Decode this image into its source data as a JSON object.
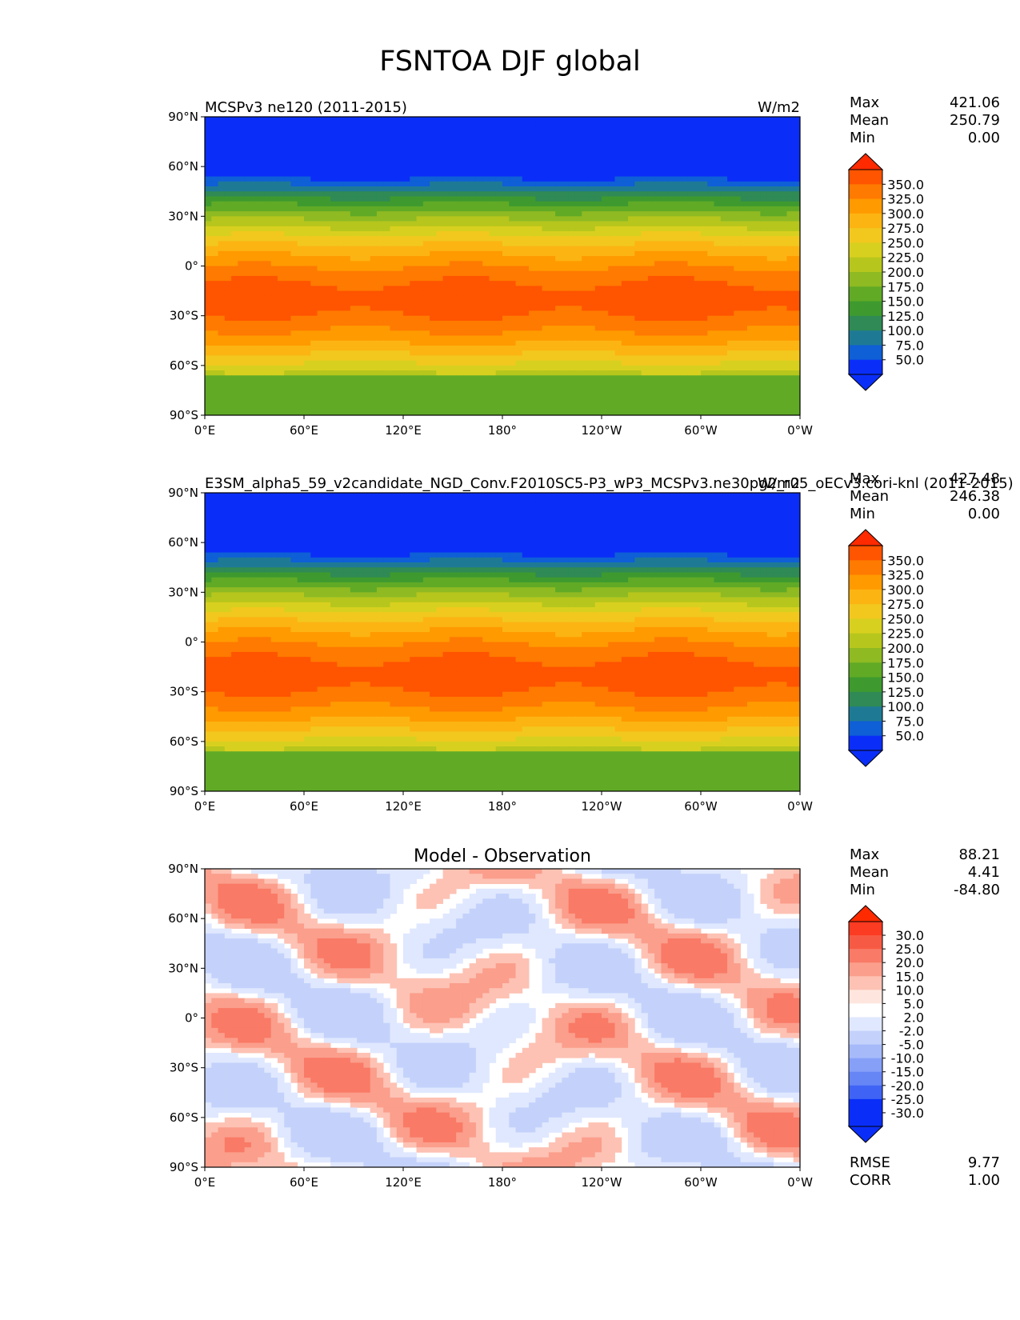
{
  "figure": {
    "title": "FSNTOA DJF global"
  },
  "panels": [
    {
      "name": "test",
      "title_left": "MCSPv3 ne120 (2011-2015)",
      "title_right": "W/m2",
      "title_center": "",
      "stats": [
        {
          "label": "Max",
          "value": "421.06"
        },
        {
          "label": "Mean",
          "value": "250.79"
        },
        {
          "label": "Min",
          "value": "0.00"
        }
      ],
      "colorbar": {
        "labels": [
          "350.0",
          "325.0",
          "300.0",
          "275.0",
          "250.0",
          "225.0",
          "200.0",
          "175.0",
          "150.0",
          "125.0",
          "100.0",
          "75.0",
          "50.0"
        ],
        "colors": [
          "#ff2a00",
          "#ff5400",
          "#ff7a00",
          "#ff9a00",
          "#fcb413",
          "#f2c81e",
          "#d8d01f",
          "#b6c61c",
          "#8fba22",
          "#60aa26",
          "#3e9a2e",
          "#2f8a55",
          "#1e7a94",
          "#0f5fd6",
          "#0a2ef8",
          "#0a2ef8"
        ]
      }
    },
    {
      "name": "reference",
      "title_left": "E3SM_alpha5_59_v2candidate_NGD_Conv.F2010SC5-P3_wP3_MCSPv3.ne30pg2_r05_oECv3.cori-knl (2011-2015)",
      "title_right": "W/m2",
      "title_center": "",
      "stats": [
        {
          "label": "Max",
          "value": "427.48"
        },
        {
          "label": "Mean",
          "value": "246.38"
        },
        {
          "label": "Min",
          "value": "0.00"
        }
      ],
      "colorbar": {
        "labels": [
          "350.0",
          "325.0",
          "300.0",
          "275.0",
          "250.0",
          "225.0",
          "200.0",
          "175.0",
          "150.0",
          "125.0",
          "100.0",
          "75.0",
          "50.0"
        ],
        "colors": [
          "#ff2a00",
          "#ff5400",
          "#ff7a00",
          "#ff9a00",
          "#fcb413",
          "#f2c81e",
          "#d8d01f",
          "#b6c61c",
          "#8fba22",
          "#60aa26",
          "#3e9a2e",
          "#2f8a55",
          "#1e7a94",
          "#0f5fd6",
          "#0a2ef8",
          "#0a2ef8"
        ]
      }
    },
    {
      "name": "difference",
      "title_left": "",
      "title_right": "",
      "title_center": "Model - Observation",
      "stats": [
        {
          "label": "Max",
          "value": "88.21"
        },
        {
          "label": "Mean",
          "value": "4.41"
        },
        {
          "label": "Min",
          "value": "-84.80"
        }
      ],
      "extra_stats": [
        {
          "label": "RMSE",
          "value": "9.77"
        },
        {
          "label": "CORR",
          "value": "1.00"
        }
      ],
      "colorbar": {
        "labels": [
          "30.0",
          "25.0",
          "20.0",
          "15.0",
          "10.0",
          "5.0",
          "2.0",
          "-2.0",
          "-5.0",
          "-10.0",
          "-15.0",
          "-20.0",
          "-25.0",
          "-30.0"
        ],
        "colors": [
          "#ff2a00",
          "#fb3b22",
          "#f75a44",
          "#f97a66",
          "#fb9e8c",
          "#fdc2b4",
          "#fee6de",
          "#ffffff",
          "#e0e8ff",
          "#c4d2fb",
          "#a6bafa",
          "#86a0f8",
          "#6686f6",
          "#3f64f5",
          "#0a2ef8",
          "#0a2ef8"
        ]
      }
    }
  ],
  "axes": {
    "lat_ticks": [
      "90°N",
      "60°N",
      "30°N",
      "0°",
      "30°S",
      "60°S",
      "90°S"
    ],
    "lon_ticks": [
      "0°E",
      "60°E",
      "120°E",
      "180°",
      "120°W",
      "60°W",
      "0°W"
    ]
  }
}
